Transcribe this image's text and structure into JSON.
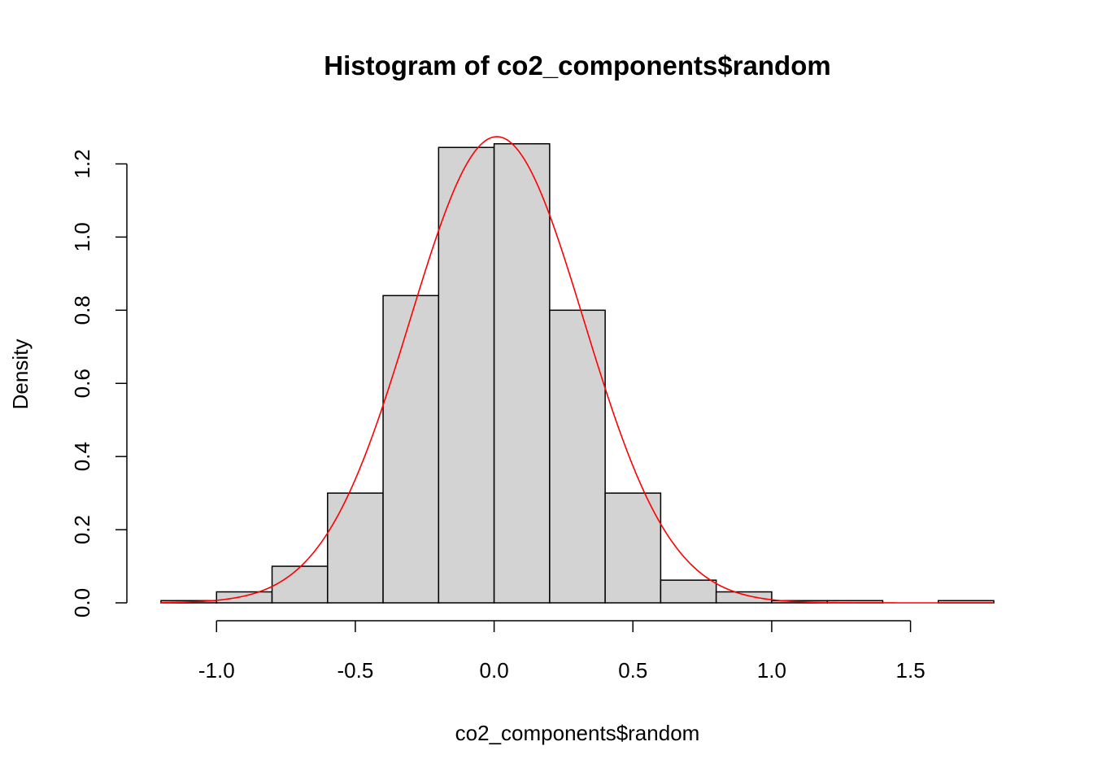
{
  "chart_data": {
    "type": "bar",
    "subtype": "histogram-with-density-curve",
    "title": "Histogram of co2_components$random",
    "xlabel": "co2_components$random",
    "ylabel": "Density",
    "xlim": [
      -1.2,
      1.8
    ],
    "ylim": [
      0,
      1.27
    ],
    "x_ticks": [
      -1.0,
      -0.5,
      0.0,
      0.5,
      1.0,
      1.5
    ],
    "x_tick_labels": [
      "-1.0",
      "-0.5",
      "0.0",
      "0.5",
      "1.0",
      "1.5"
    ],
    "y_ticks": [
      0.0,
      0.2,
      0.4,
      0.6,
      0.8,
      1.0,
      1.2
    ],
    "y_tick_labels": [
      "0.0",
      "0.2",
      "0.4",
      "0.6",
      "0.8",
      "1.0",
      "1.2"
    ],
    "bin_edges": [
      -1.2,
      -1.0,
      -0.8,
      -0.6,
      -0.4,
      -0.2,
      0.0,
      0.2,
      0.4,
      0.6,
      0.8,
      1.0,
      1.2,
      1.4,
      1.6,
      1.8
    ],
    "densities": [
      0.006,
      0.03,
      0.1,
      0.3,
      0.84,
      1.245,
      1.255,
      0.8,
      0.3,
      0.062,
      0.03,
      0.006,
      0.006,
      0.0,
      0.006
    ],
    "bar_fill": "#d3d3d3",
    "bar_stroke": "#000000",
    "curve": {
      "type": "normal-density",
      "mean": 0.01,
      "sd": 0.313,
      "color": "#ff0000"
    }
  }
}
